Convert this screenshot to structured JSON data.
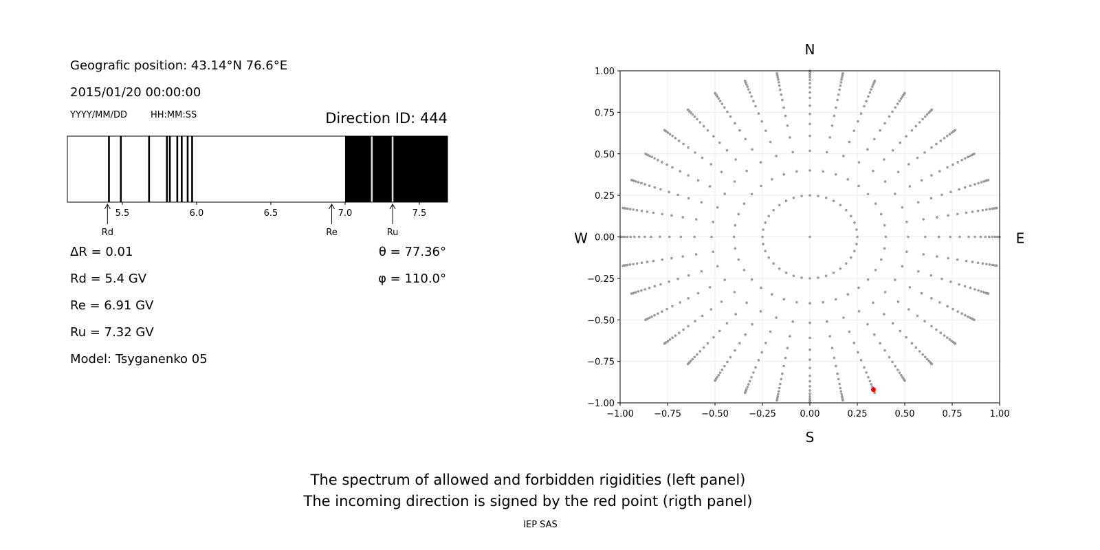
{
  "left_panel": {
    "geo_position": "Geografic position: 43.14°N 76.6°E",
    "datetime": "2015/01/20 00:00:00",
    "date_format": "YYYY/MM/DD",
    "time_format": "HH:MM:SS",
    "direction_id": "Direction ID: 444",
    "delta_r": "ΔR = 0.01",
    "rd": "Rd = 5.4 GV",
    "re": "Re = 6.91 GV",
    "ru": "Ru = 7.32 GV",
    "model": "Model: Tsyganenko 05",
    "theta": "θ = 77.36°",
    "phi": "φ = 110.0°"
  },
  "footer": {
    "line1": "The spectrum of allowed and forbidden rigidities (left panel)",
    "line2": "The incoming direction is signed by the red point (rigth panel)",
    "credit": "IEP SAS"
  },
  "chart_data": [
    {
      "type": "bar",
      "description_kind": "rigidity spectrum (black = forbidden, white = allowed)",
      "xlim": [
        5.13,
        7.69
      ],
      "xticks": [
        "5.5",
        "6.0",
        "6.5",
        "7.0",
        "7.5"
      ],
      "xtick_values": [
        5.5,
        6.0,
        6.5,
        7.0,
        7.5
      ],
      "bin_width": 0.01,
      "forbidden_lines": [
        5.41,
        5.49,
        5.68,
        5.8,
        5.82,
        5.87,
        5.9,
        5.94,
        5.97
      ],
      "forbidden_band": [
        7.0,
        7.69
      ],
      "allowed_lines_in_band": [
        7.18,
        7.32
      ],
      "markers": [
        {
          "label": "Rd",
          "value": 5.4
        },
        {
          "label": "Re",
          "value": 6.91
        },
        {
          "label": "Ru",
          "value": 7.32
        }
      ],
      "colors": {
        "forbidden": "#000000",
        "allowed": "#ffffff"
      }
    },
    {
      "type": "scatter",
      "xlim": [
        -1,
        1
      ],
      "ylim": [
        -1,
        1
      ],
      "ticks": [
        "−1.00",
        "−0.75",
        "−0.50",
        "−0.25",
        "0.00",
        "0.25",
        "0.50",
        "0.75",
        "1.00"
      ],
      "tick_values": [
        -1,
        -0.75,
        -0.5,
        -0.25,
        0,
        0.25,
        0.5,
        0.75,
        1
      ],
      "grid": true,
      "compass": {
        "north": "N",
        "south": "S",
        "west": "W",
        "east": "E"
      },
      "direction_grid": {
        "azimuth_step_deg": 10,
        "inner_ring_radius": 0.25,
        "ray_radii": [
          0.4,
          0.518,
          0.608,
          0.68,
          0.74,
          0.79,
          0.837,
          0.87,
          0.9,
          0.925,
          0.945,
          0.962,
          0.976,
          0.987,
          0.995,
          1.0
        ],
        "center_point": [
          0,
          0
        ],
        "color": "#999999"
      },
      "highlight_point": {
        "x": 0.335,
        "y": -0.92,
        "color": "#ff0000"
      }
    }
  ]
}
